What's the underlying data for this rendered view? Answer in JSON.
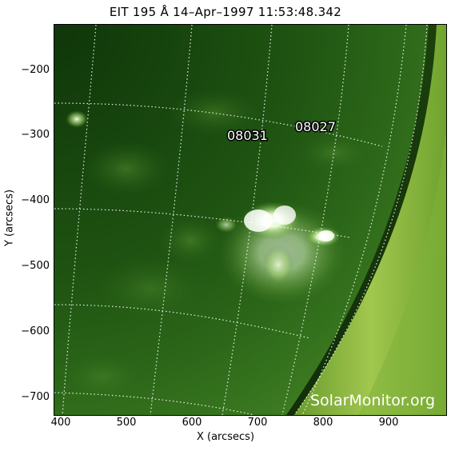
{
  "title": "EIT 195 Å 14–Apr–1997 11:53:48.342",
  "xlabel": "X (arcsecs)",
  "ylabel": "Y (arcsecs)",
  "x_ticks": [
    "400",
    "500",
    "600",
    "700",
    "800",
    "900"
  ],
  "y_ticks": [
    "−200",
    "−300",
    "−400",
    "−500",
    "−600",
    "−700"
  ],
  "regions": [
    "08031",
    "08027"
  ],
  "watermark": "SolarMonitor.org",
  "colors": {
    "disk_dark": "#123d0b",
    "disk_mid": "#2f6a1b",
    "limb": "#c6e56a",
    "active_region": "#f4ffe6",
    "grid": "#ffffff"
  }
}
